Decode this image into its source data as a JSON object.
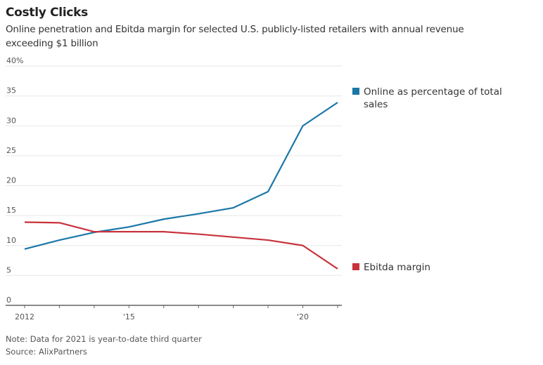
{
  "chart_data": {
    "type": "line",
    "title": "Costly Clicks",
    "subtitle": "Online penetration and Ebitda margin for selected U.S. publicly-listed retailers with annual revenue exceeding $1 billion",
    "xlabel": "",
    "ylabel": "",
    "x": [
      2012,
      2013,
      2014,
      2015,
      2016,
      2017,
      2018,
      2019,
      2020,
      2021
    ],
    "xlim": [
      2012,
      2021
    ],
    "ylim": [
      0,
      40
    ],
    "yticks": [
      0,
      5,
      10,
      15,
      20,
      25,
      30,
      35,
      40
    ],
    "ytick_labels": [
      "0",
      "5",
      "10",
      "15",
      "20",
      "25",
      "30",
      "35",
      "40%"
    ],
    "xtick_labels": [
      {
        "x": 2012,
        "label": "2012"
      },
      {
        "x": 2015,
        "label": "'15"
      },
      {
        "x": 2020,
        "label": "'20"
      }
    ],
    "grid": true,
    "legend_placement": "right, inline labels",
    "series": [
      {
        "name": "Online as percentage of total sales",
        "color": "#1a77a8",
        "values": [
          9.4,
          10.9,
          12.2,
          13.1,
          14.4,
          15.3,
          16.3,
          19.0,
          30.0,
          33.9
        ]
      },
      {
        "name": "Ebitda margin",
        "color": "#c8323c",
        "values": [
          13.9,
          13.8,
          12.3,
          12.3,
          12.3,
          11.9,
          11.4,
          10.9,
          10.0,
          6.1
        ]
      }
    ],
    "note": "Note: Data for 2021 is year-to-date third quarter",
    "source": "Source: AlixPartners"
  },
  "legend": {
    "online_line1": "Online as percentage of total",
    "online_line2": "sales",
    "ebitda": "Ebitda margin"
  }
}
